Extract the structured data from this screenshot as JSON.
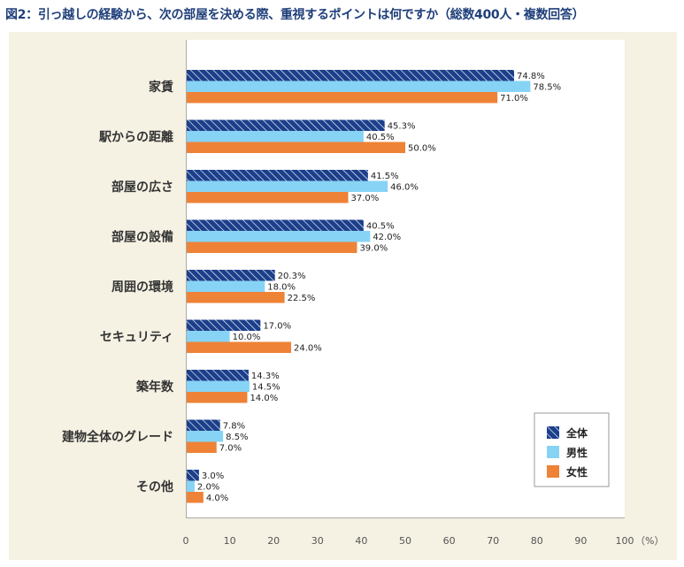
{
  "title": "図2：引っ越しの経験から、次の部屋を決める際、重視するポイントは何ですか（総数400人・複数回答）",
  "colors": {
    "zentai": "#1b3f8b",
    "dansei": "#87d3f5",
    "josei": "#ee8236",
    "panel": "#f5f1e3",
    "plot": "#ffffff"
  },
  "chart_data": {
    "type": "bar",
    "orientation": "horizontal",
    "categories": [
      "家賃",
      "駅からの距離",
      "部屋の広さ",
      "部屋の設備",
      "周囲の環境",
      "セキュリティ",
      "築年数",
      "建物全体のグレード",
      "その他"
    ],
    "series": [
      {
        "name": "全体",
        "pattern": "hatched",
        "values": [
          74.8,
          45.3,
          41.5,
          40.5,
          20.3,
          17.0,
          14.3,
          7.8,
          3.0
        ],
        "labels": [
          "74.8%",
          "45.3%",
          "41.5%",
          "40.5%",
          "20.3%",
          "17.0%",
          "14.3%",
          "7.8%",
          "3.0%"
        ]
      },
      {
        "name": "男性",
        "values": [
          78.5,
          40.5,
          46.0,
          42.0,
          18.0,
          10.0,
          14.5,
          8.5,
          2.0
        ],
        "labels": [
          "78.5%",
          "40.5%",
          "46.0%",
          "42.0%",
          "18.0%",
          "10.0%",
          "14.5%",
          "8.5%",
          "2.0%"
        ]
      },
      {
        "name": "女性",
        "values": [
          71.0,
          50.0,
          37.0,
          39.0,
          22.5,
          24.0,
          14.0,
          7.0,
          4.0
        ],
        "labels": [
          "71.0%",
          "50.0%",
          "37.0%",
          "39.0%",
          "22.5%",
          "24.0%",
          "14.0%",
          "7.0%",
          "4.0%"
        ]
      }
    ],
    "xlim": [
      0,
      100
    ],
    "xticks": [
      "0",
      "10",
      "20",
      "30",
      "40",
      "50",
      "60",
      "70",
      "80",
      "90",
      "100"
    ],
    "xunit": "（%）",
    "grid": false,
    "legend_position": "bottom-right"
  }
}
